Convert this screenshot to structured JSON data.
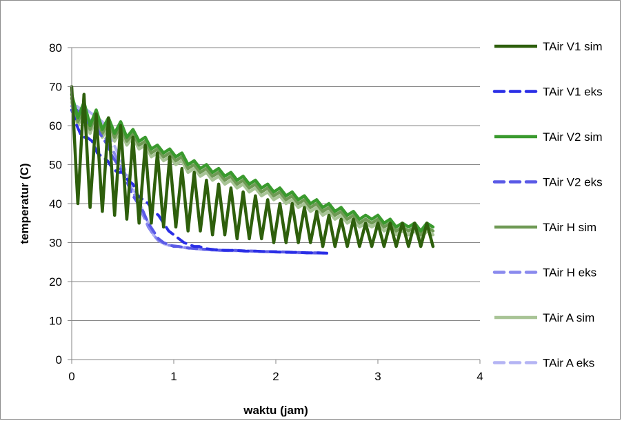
{
  "chart_data": {
    "type": "line",
    "title": "",
    "xlabel": "waktu (jam)",
    "ylabel": "temperatur (C)",
    "xlim": [
      0,
      4
    ],
    "ylim": [
      0,
      80
    ],
    "xticks": [
      0,
      1,
      2,
      3,
      4
    ],
    "xtick_labels": [
      "0",
      "1",
      "2",
      "3",
      "4"
    ],
    "yticks": [
      0,
      10,
      20,
      30,
      40,
      50,
      60,
      70,
      80
    ],
    "ytick_labels": [
      "0",
      "10",
      "20",
      "30",
      "40",
      "50",
      "60",
      "70",
      "80"
    ],
    "grid": "horizontal",
    "legend_position": "right",
    "series": [
      {
        "name": "TAir V1 sim",
        "color": "#2e5f0c",
        "style": "solid",
        "x": [
          0,
          0.06,
          0.12,
          0.18,
          0.24,
          0.3,
          0.36,
          0.42,
          0.48,
          0.54,
          0.6,
          0.66,
          0.72,
          0.78,
          0.84,
          0.9,
          0.96,
          1.02,
          1.08,
          1.14,
          1.2,
          1.26,
          1.32,
          1.38,
          1.44,
          1.5,
          1.56,
          1.62,
          1.68,
          1.74,
          1.8,
          1.86,
          1.92,
          1.98,
          2.04,
          2.1,
          2.16,
          2.22,
          2.28,
          2.34,
          2.4,
          2.46,
          2.52,
          2.58,
          2.64,
          2.7,
          2.76,
          2.82,
          2.88,
          2.94,
          3.0,
          3.06,
          3.12,
          3.18,
          3.24,
          3.3,
          3.36,
          3.42,
          3.48,
          3.54
        ],
        "y": [
          70,
          40,
          68,
          39,
          63,
          38,
          62,
          37,
          60,
          36,
          57,
          35,
          55,
          35,
          53,
          34,
          52,
          34,
          49,
          33,
          48,
          33,
          46,
          32,
          45,
          32,
          44,
          31,
          43,
          31,
          42,
          31,
          41,
          30,
          40,
          30,
          40,
          30,
          39,
          30,
          38,
          29,
          37,
          29,
          36,
          29,
          36,
          29,
          35,
          29,
          35,
          29,
          35,
          29,
          35,
          29,
          35,
          29,
          35,
          29
        ]
      },
      {
        "name": "TAir V1 eks",
        "color": "#2a2ee6",
        "style": "dash",
        "x": [
          0,
          0.05,
          0.1,
          0.15,
          0.2,
          0.25,
          0.3,
          0.35,
          0.4,
          0.45,
          0.5,
          0.55,
          0.6,
          0.65,
          0.7,
          0.75,
          0.8,
          0.85,
          0.9,
          0.95,
          1.0,
          1.05,
          1.1,
          1.15,
          1.2,
          1.25,
          1.3,
          1.4,
          1.5,
          1.6,
          1.7,
          1.8,
          1.9,
          2.0,
          2.1,
          2.2,
          2.3,
          2.4,
          2.5
        ],
        "y": [
          64,
          60,
          57,
          57,
          56,
          53,
          52,
          51,
          49,
          48,
          48,
          46,
          45,
          42,
          41,
          40,
          38,
          37,
          35,
          33,
          32,
          31,
          30,
          29.5,
          29,
          29,
          28.5,
          28.2,
          28,
          28,
          27.8,
          27.8,
          27.7,
          27.6,
          27.5,
          27.5,
          27.4,
          27.4,
          27.3
        ]
      },
      {
        "name": "TAir V2 sim",
        "color": "#3a9a2e",
        "style": "solid",
        "x": [
          0,
          0.06,
          0.12,
          0.18,
          0.24,
          0.3,
          0.36,
          0.42,
          0.48,
          0.54,
          0.6,
          0.66,
          0.72,
          0.78,
          0.84,
          0.9,
          0.96,
          1.02,
          1.08,
          1.14,
          1.2,
          1.26,
          1.32,
          1.38,
          1.44,
          1.5,
          1.56,
          1.62,
          1.68,
          1.74,
          1.8,
          1.86,
          1.92,
          1.98,
          2.04,
          2.1,
          2.16,
          2.22,
          2.28,
          2.34,
          2.4,
          2.46,
          2.52,
          2.58,
          2.64,
          2.7,
          2.76,
          2.82,
          2.88,
          2.94,
          3.0,
          3.06,
          3.12,
          3.18,
          3.24,
          3.3,
          3.36,
          3.42,
          3.48,
          3.54
        ],
        "y": [
          68,
          62,
          66,
          60,
          64,
          59,
          62,
          58,
          61,
          57,
          59,
          56,
          57,
          54,
          55,
          53,
          54,
          52,
          53,
          50,
          51,
          49,
          50,
          48,
          49,
          47,
          48,
          46,
          47,
          45,
          46,
          44,
          45,
          43,
          44,
          42,
          43,
          41,
          42,
          40,
          41,
          39,
          40,
          38,
          39,
          37,
          38,
          36,
          37,
          36,
          37,
          35,
          36,
          34,
          35,
          34,
          35,
          33,
          35,
          34
        ]
      },
      {
        "name": "TAir V2 eks",
        "color": "#5a5ae6",
        "style": "dash",
        "x": [
          0,
          0.05,
          0.1,
          0.15,
          0.2,
          0.25,
          0.3,
          0.35,
          0.4,
          0.45,
          0.5,
          0.55,
          0.6,
          0.65,
          0.7,
          0.75,
          0.8,
          0.85,
          0.9,
          0.95,
          1.0,
          1.05,
          1.1,
          1.15,
          1.2,
          1.25,
          1.3,
          1.4,
          1.5,
          1.6,
          1.7,
          1.8,
          1.9,
          2.0,
          2.1,
          2.2,
          2.3,
          2.4,
          2.5
        ],
        "y": [
          64,
          64,
          63,
          61,
          60,
          59,
          57,
          55,
          52,
          50,
          48,
          45,
          42,
          40,
          38,
          35,
          33,
          31,
          30,
          29.5,
          29,
          29,
          28.8,
          28.6,
          28.5,
          28.4,
          28.3,
          28.1,
          28,
          28,
          27.9,
          27.8,
          27.7,
          27.7,
          27.6,
          27.5,
          27.4,
          27.4,
          27.3
        ]
      },
      {
        "name": "TAir H sim",
        "color": "#6f9a55",
        "style": "solid",
        "x": [
          0,
          0.06,
          0.12,
          0.18,
          0.24,
          0.3,
          0.36,
          0.42,
          0.48,
          0.54,
          0.6,
          0.66,
          0.72,
          0.78,
          0.84,
          0.9,
          0.96,
          1.02,
          1.08,
          1.14,
          1.2,
          1.26,
          1.32,
          1.38,
          1.44,
          1.5,
          1.56,
          1.62,
          1.68,
          1.74,
          1.8,
          1.86,
          1.92,
          1.98,
          2.04,
          2.1,
          2.16,
          2.22,
          2.28,
          2.34,
          2.4,
          2.46,
          2.52,
          2.58,
          2.64,
          2.7,
          2.76,
          2.82,
          2.88,
          2.94,
          3.0,
          3.06,
          3.12,
          3.18,
          3.24,
          3.3,
          3.36,
          3.42,
          3.48,
          3.54
        ],
        "y": [
          67,
          61,
          65,
          59,
          63,
          58,
          61,
          57,
          60,
          56,
          58,
          55,
          56,
          53,
          54,
          52,
          53,
          51,
          52,
          49,
          50,
          48,
          49,
          47,
          48,
          46,
          47,
          45,
          46,
          44,
          45,
          43,
          44,
          42,
          43,
          41,
          42,
          40,
          41,
          39,
          40,
          38,
          39,
          37,
          38,
          36,
          37,
          35,
          36,
          35,
          36,
          34,
          35,
          33,
          34,
          33,
          34,
          32,
          34,
          33
        ]
      },
      {
        "name": "TAir H eks",
        "color": "#8a8aee",
        "style": "dash",
        "x": [
          0,
          0.05,
          0.1,
          0.15,
          0.2,
          0.25,
          0.3,
          0.35,
          0.4,
          0.45,
          0.5,
          0.55,
          0.6,
          0.65,
          0.7,
          0.75,
          0.8,
          0.85,
          0.9,
          0.95,
          1.0,
          1.05,
          1.1,
          1.15,
          1.2,
          1.25,
          1.3,
          1.4,
          1.5,
          1.6,
          1.7,
          1.8,
          1.9,
          2.0,
          2.1,
          2.2,
          2.3,
          2.4,
          2.5
        ],
        "y": [
          65,
          64,
          63,
          62,
          61,
          60,
          58,
          56,
          54,
          51,
          49,
          46,
          43,
          40,
          37,
          34,
          32,
          30.5,
          29.8,
          29.4,
          29.2,
          29,
          28.8,
          28.6,
          28.5,
          28.4,
          28.3,
          28.1,
          28,
          28,
          27.9,
          27.8,
          27.7,
          27.6,
          27.6,
          27.5,
          27.4,
          27.3,
          27.3
        ]
      },
      {
        "name": "TAir A sim",
        "color": "#a8c496",
        "style": "solid",
        "x": [
          0,
          0.06,
          0.12,
          0.18,
          0.24,
          0.3,
          0.36,
          0.42,
          0.48,
          0.54,
          0.6,
          0.66,
          0.72,
          0.78,
          0.84,
          0.9,
          0.96,
          1.02,
          1.08,
          1.14,
          1.2,
          1.26,
          1.32,
          1.38,
          1.44,
          1.5,
          1.56,
          1.62,
          1.68,
          1.74,
          1.8,
          1.86,
          1.92,
          1.98,
          2.04,
          2.1,
          2.16,
          2.22,
          2.28,
          2.34,
          2.4,
          2.46,
          2.52,
          2.58,
          2.64,
          2.7,
          2.76,
          2.82,
          2.88,
          2.94,
          3.0,
          3.06,
          3.12,
          3.18,
          3.24,
          3.3,
          3.36,
          3.42,
          3.48,
          3.54
        ],
        "y": [
          66,
          60,
          64,
          58,
          62,
          57,
          60,
          56,
          59,
          55,
          57,
          54,
          55,
          52,
          53,
          51,
          52,
          50,
          51,
          48,
          49,
          47,
          48,
          46,
          47,
          45,
          46,
          44,
          45,
          43,
          44,
          42,
          43,
          41,
          42,
          40,
          41,
          39,
          40,
          38,
          39,
          37,
          38,
          36,
          37,
          35,
          36,
          34,
          35,
          34,
          35,
          33,
          34,
          32,
          33,
          32,
          33,
          31,
          33,
          32
        ]
      },
      {
        "name": "TAir A eks",
        "color": "#b4b4f4",
        "style": "dash",
        "x": [
          0,
          0.05,
          0.1,
          0.15,
          0.2,
          0.25,
          0.3,
          0.35,
          0.4,
          0.45,
          0.5,
          0.55,
          0.6,
          0.65,
          0.7,
          0.75,
          0.8,
          0.85,
          0.9,
          0.95,
          1.0,
          1.05,
          1.1,
          1.15,
          1.2,
          1.25,
          1.3,
          1.4,
          1.5,
          1.6,
          1.7,
          1.8,
          1.9,
          2.0,
          2.1,
          2.2,
          2.3,
          2.4,
          2.5
        ],
        "y": [
          65,
          65,
          64,
          64,
          63,
          62,
          61,
          59,
          56,
          53,
          50,
          47,
          44,
          41,
          38,
          35,
          32,
          30.5,
          29.7,
          29.3,
          29.1,
          28.9,
          28.7,
          28.5,
          28.4,
          28.3,
          28.2,
          28,
          27.9,
          27.9,
          27.8,
          27.7,
          27.6,
          27.6,
          27.5,
          27.4,
          27.3,
          27.3,
          27.2
        ]
      }
    ]
  }
}
